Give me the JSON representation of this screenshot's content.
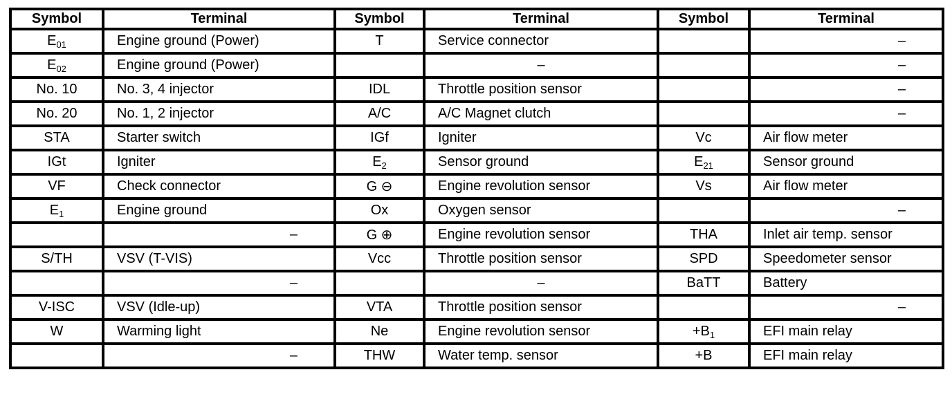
{
  "headers": [
    "Symbol",
    "Terminal",
    "Symbol",
    "Terminal",
    "Symbol",
    "Terminal"
  ],
  "rows": [
    {
      "s1": "E",
      "s1_sub": "01",
      "t1": "Engine ground (Power)",
      "s2": "T",
      "s2_sub": "",
      "t2": "Service connector",
      "s3": "",
      "s3_sub": "",
      "t3": "–"
    },
    {
      "s1": "E",
      "s1_sub": "02",
      "t1": "Engine ground (Power)",
      "s2": "",
      "s2_sub": "",
      "t2": "–",
      "s3": "",
      "s3_sub": "",
      "t3": "–"
    },
    {
      "s1": "No. 10",
      "s1_sub": "",
      "t1": "No. 3, 4 injector",
      "s2": "IDL",
      "s2_sub": "",
      "t2": "Throttle position sensor",
      "s3": "",
      "s3_sub": "",
      "t3": "–"
    },
    {
      "s1": "No. 20",
      "s1_sub": "",
      "t1": "No. 1, 2 injector",
      "s2": "A/C",
      "s2_sub": "",
      "t2": "A/C Magnet clutch",
      "s3": "",
      "s3_sub": "",
      "t3": "–"
    },
    {
      "s1": "STA",
      "s1_sub": "",
      "t1": "Starter switch",
      "s2": "IGf",
      "s2_sub": "",
      "t2": "Igniter",
      "s3": "Vc",
      "s3_sub": "",
      "t3": "Air flow meter"
    },
    {
      "s1": "IGt",
      "s1_sub": "",
      "t1": "Igniter",
      "s2": "E",
      "s2_sub": "2",
      "t2": "Sensor ground",
      "s3": "E",
      "s3_sub": "21",
      "t3": "Sensor ground"
    },
    {
      "s1": "VF",
      "s1_sub": "",
      "t1": "Check connector",
      "s2": "G ⊖",
      "s2_sub": "",
      "t2": "Engine revolution sensor",
      "s3": "Vs",
      "s3_sub": "",
      "t3": "Air flow meter"
    },
    {
      "s1": "E",
      "s1_sub": "1",
      "t1": "Engine ground",
      "s2": "Ox",
      "s2_sub": "",
      "t2": "Oxygen sensor",
      "s3": "",
      "s3_sub": "",
      "t3": "–"
    },
    {
      "s1": "",
      "s1_sub": "",
      "t1": "–",
      "s2": "G ⊕",
      "s2_sub": "",
      "t2": "Engine revolution sensor",
      "s3": "THA",
      "s3_sub": "",
      "t3": "Inlet air temp. sensor"
    },
    {
      "s1": "S/TH",
      "s1_sub": "",
      "t1": "VSV (T-VIS)",
      "s2": "Vcc",
      "s2_sub": "",
      "t2": "Throttle position sensor",
      "s3": "SPD",
      "s3_sub": "",
      "t3": "Speedometer sensor"
    },
    {
      "s1": "",
      "s1_sub": "",
      "t1": "–",
      "s2": "",
      "s2_sub": "",
      "t2": "–",
      "s3": "BaTT",
      "s3_sub": "",
      "t3": "Battery"
    },
    {
      "s1": "V-ISC",
      "s1_sub": "",
      "t1": "VSV (Idle-up)",
      "s2": "VTA",
      "s2_sub": "",
      "t2": "Throttle position sensor",
      "s3": "",
      "s3_sub": "",
      "t3": "–"
    },
    {
      "s1": "W",
      "s1_sub": "",
      "t1": "Warming light",
      "s2": "Ne",
      "s2_sub": "",
      "t2": "Engine revolution sensor",
      "s3": "+B",
      "s3_sub": "1",
      "t3": "EFI main relay"
    },
    {
      "s1": "",
      "s1_sub": "",
      "t1": "–",
      "s2": "THW",
      "s2_sub": "",
      "t2": "Water temp. sensor",
      "s3": "+B",
      "s3_sub": "",
      "t3": "EFI main relay"
    }
  ]
}
